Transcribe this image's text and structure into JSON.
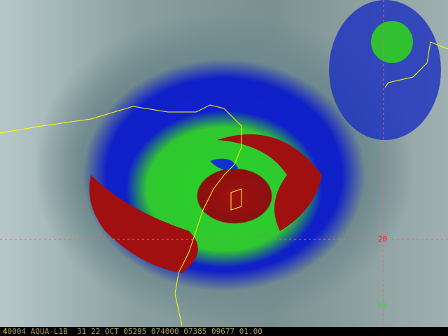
{
  "image": {
    "kind": "satellite infrared enhanced cyclone image",
    "colors": {
      "cold_core": "#a01010",
      "green_band": "#30c830",
      "blue_band": "#1020c8",
      "coastline": "#ffff00",
      "grid": "#ff6060"
    }
  },
  "grid_labels": {
    "lat": "20",
    "lon": "85"
  },
  "info_bar": {
    "channel": "4",
    "text": "0004 AQUA-L1B  31 22 OCT 05295 074000 07385 09677 01.00"
  }
}
